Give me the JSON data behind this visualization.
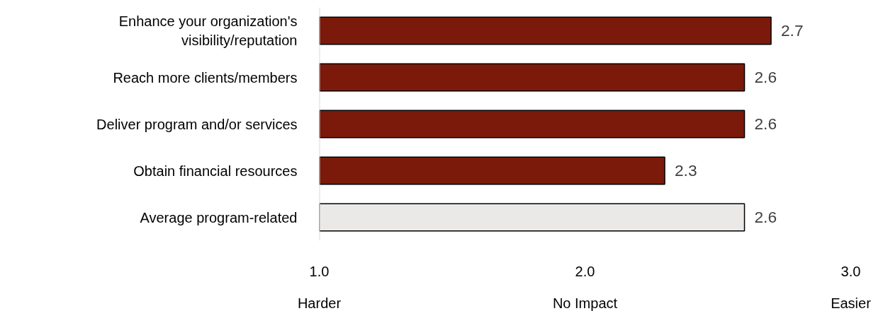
{
  "chart_data": {
    "type": "bar",
    "orientation": "horizontal",
    "categories": [
      "Enhance your organization's\nvisibility/reputation",
      "Reach more clients/members",
      "Deliver program and/or services",
      "Obtain financial resources",
      "Average program-related"
    ],
    "values": [
      2.7,
      2.6,
      2.6,
      2.3,
      2.6
    ],
    "colors": [
      "#7b1a0a",
      "#7b1a0a",
      "#7b1a0a",
      "#7b1a0a",
      "#ebe8e8"
    ],
    "xlim": [
      1,
      3
    ],
    "xticks": [
      {
        "value": 1,
        "label": "1.0"
      },
      {
        "value": 2,
        "label": "2.0"
      },
      {
        "value": 3,
        "label": "3.0"
      }
    ],
    "data_labels": true,
    "grid": false,
    "annotations": [
      "Harder",
      "No Impact",
      "Easier"
    ]
  }
}
